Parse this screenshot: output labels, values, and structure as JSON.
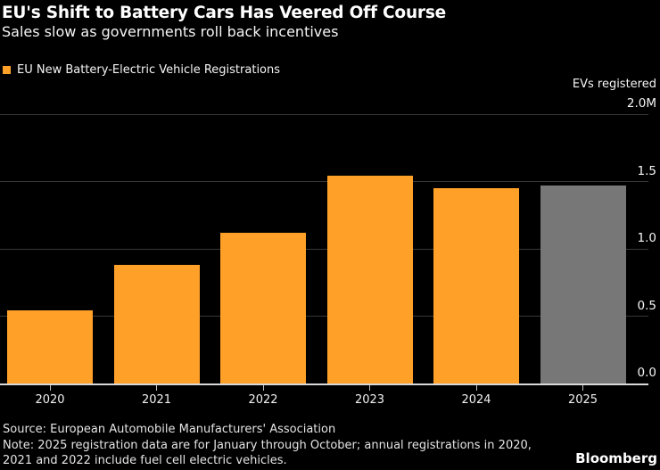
{
  "header": {
    "title": "EU's Shift to Battery Cars Has Veered Off Course",
    "subtitle": "Sales slow as governments roll back incentives"
  },
  "legend": {
    "label": "EU New Battery-Electric Vehicle Registrations",
    "swatch_color": "#FFA028"
  },
  "chart_data": {
    "type": "bar",
    "title": "EU New Battery-Electric Vehicle Registrations",
    "categories": [
      "2020",
      "2021",
      "2022",
      "2023",
      "2024",
      "2025"
    ],
    "values": [
      0.54,
      0.88,
      1.12,
      1.54,
      1.45,
      1.47
    ],
    "bar_colors": [
      "#FFA028",
      "#FFA028",
      "#FFA028",
      "#FFA028",
      "#FFA028",
      "#777778"
    ],
    "unit": "millions of vehicles",
    "ylabel": "EVs registered",
    "ylim": [
      0,
      2.0
    ],
    "yticks": [
      {
        "value": 0.0,
        "label": "0.0"
      },
      {
        "value": 0.5,
        "label": "0.5"
      },
      {
        "value": 1.0,
        "label": "1.0"
      },
      {
        "value": 1.5,
        "label": "1.5"
      },
      {
        "value": 2.0,
        "label": "2.0M"
      }
    ],
    "grid": true,
    "gridline_color": "#383838",
    "axis_line_color": "#d9d9d9",
    "legend_position": "top-left",
    "highlight": {
      "category": "2025",
      "color": "#777778"
    }
  },
  "footer": {
    "source": "Source: European Automobile Manufacturers' Association",
    "note_line1": "Note: 2025 registration data are for January through October; annual registrations in 2020,",
    "note_line2": "2021 and 2022 include fuel cell electric vehicles.",
    "brand": "Bloomberg"
  },
  "colors": {
    "background": "#000000",
    "accent_orange": "#FFA028",
    "muted_gray_bar": "#777778",
    "text": "#FFFFFF"
  }
}
